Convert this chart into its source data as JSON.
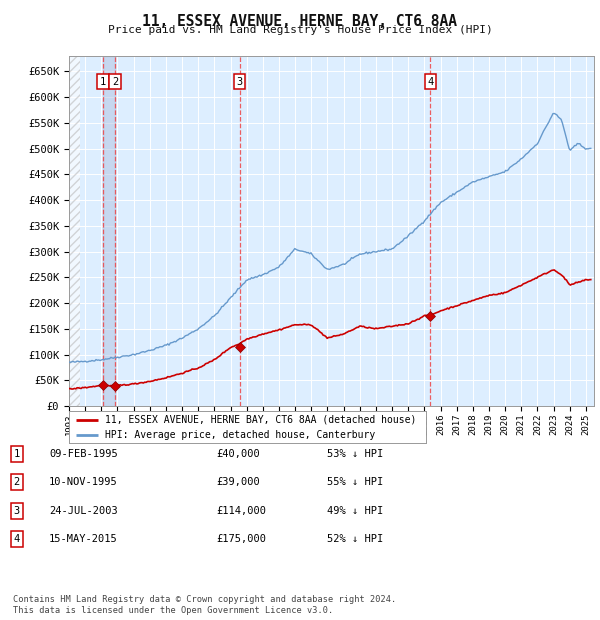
{
  "title": "11, ESSEX AVENUE, HERNE BAY, CT6 8AA",
  "subtitle": "Price paid vs. HM Land Registry's House Price Index (HPI)",
  "background_color": "#ffffff",
  "plot_bg_color": "#ddeeff",
  "grid_color": "#ffffff",
  "ylim": [
    0,
    680000
  ],
  "yticks": [
    0,
    50000,
    100000,
    150000,
    200000,
    250000,
    300000,
    350000,
    400000,
    450000,
    500000,
    550000,
    600000,
    650000
  ],
  "ytick_labels": [
    "£0",
    "£50K",
    "£100K",
    "£150K",
    "£200K",
    "£250K",
    "£300K",
    "£350K",
    "£400K",
    "£450K",
    "£500K",
    "£550K",
    "£600K",
    "£650K"
  ],
  "xlim_start": 1993.0,
  "xlim_end": 2025.5,
  "red_line_color": "#cc0000",
  "blue_line_color": "#6699cc",
  "legend_red_label": "11, ESSEX AVENUE, HERNE BAY, CT6 8AA (detached house)",
  "legend_blue_label": "HPI: Average price, detached house, Canterbury",
  "transactions": [
    {
      "num": 1,
      "date_label": "09-FEB-1995",
      "price": 40000,
      "pct": "53%",
      "year_x": 1995.11
    },
    {
      "num": 2,
      "date_label": "10-NOV-1995",
      "price": 39000,
      "pct": "55%",
      "year_x": 1995.86
    },
    {
      "num": 3,
      "date_label": "24-JUL-2003",
      "price": 114000,
      "pct": "49%",
      "year_x": 2003.56
    },
    {
      "num": 4,
      "date_label": "15-MAY-2015",
      "price": 175000,
      "pct": "52%",
      "year_x": 2015.37
    }
  ],
  "footer_line1": "Contains HM Land Registry data © Crown copyright and database right 2024.",
  "footer_line2": "This data is licensed under the Open Government Licence v3.0."
}
